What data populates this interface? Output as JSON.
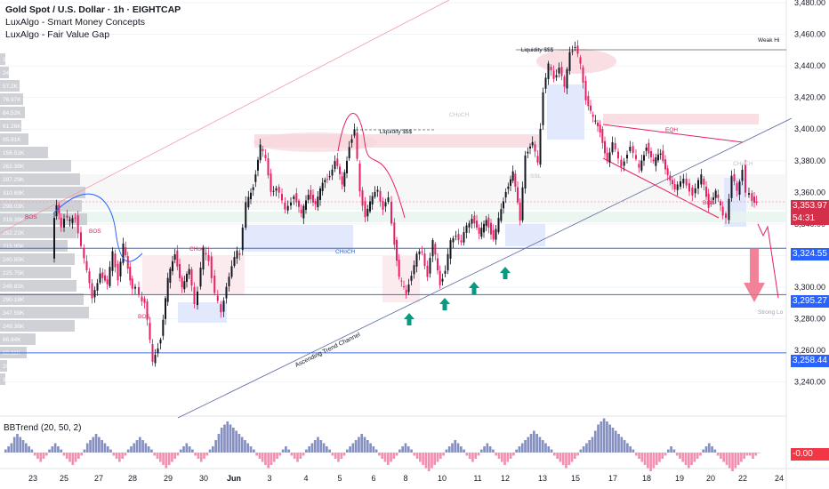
{
  "chart_data": {
    "type": "candlestick",
    "title": "Gold Spot / U.S. Dollar · 1h · EIGHTCAP",
    "indicators": [
      "LuxAlgo - Smart Money Concepts",
      "LuxAlgo - Fair Value Gap"
    ],
    "oscillator": {
      "name": "BBTrend (20, 50, 2)",
      "value": "-0.00"
    },
    "x_ticks": [
      "23",
      "25",
      "27",
      "28",
      "29",
      "30",
      "Jun",
      "3",
      "4",
      "5",
      "6",
      "8",
      "10",
      "11",
      "12",
      "13",
      "15",
      "17",
      "18",
      "19",
      "20",
      "22",
      "24"
    ],
    "y_ticks": [
      "3,480.00",
      "3,460.00",
      "3,440.00",
      "3,420.00",
      "3,400.00",
      "3,380.00",
      "3,360.00",
      "3,340.00",
      "3,320.00",
      "3,300.00",
      "3,280.00",
      "3,260.00",
      "3,240.00"
    ],
    "ylim": [
      3230,
      3490
    ],
    "last_price": "3,353.97",
    "countdown": "54:31",
    "levels": [
      {
        "price": 3324.55,
        "label": "3,324.55"
      },
      {
        "price": 3295.27,
        "label": "3,295.27"
      },
      {
        "price": 3258.44,
        "label": "3,258.44"
      }
    ],
    "path_points": [
      [
        3318,
        60
      ],
      [
        3345,
        62
      ],
      [
        3352,
        65
      ],
      [
        3338,
        70
      ],
      [
        3345,
        74
      ],
      [
        3341,
        80
      ],
      [
        3345,
        86
      ],
      [
        3317,
        96
      ],
      [
        3293,
        105
      ],
      [
        3310,
        114
      ],
      [
        3300,
        122
      ],
      [
        3322,
        128
      ],
      [
        3306,
        134
      ],
      [
        3326,
        140
      ],
      [
        3312,
        145
      ],
      [
        3300,
        150
      ],
      [
        3299,
        154
      ],
      [
        3295,
        158
      ],
      [
        3290,
        164
      ],
      [
        3253,
        173
      ],
      [
        3268,
        182
      ],
      [
        3304,
        190
      ],
      [
        3322,
        198
      ],
      [
        3300,
        206
      ],
      [
        3310,
        214
      ],
      [
        3290,
        220
      ],
      [
        3299,
        224
      ],
      [
        3323,
        230
      ],
      [
        3318,
        236
      ],
      [
        3296,
        243
      ],
      [
        3283,
        250
      ],
      [
        3302,
        256
      ],
      [
        3312,
        262
      ],
      [
        3323,
        268
      ],
      [
        3322,
        271
      ],
      [
        3352,
        278
      ],
      [
        3365,
        286
      ],
      [
        3389,
        294
      ],
      [
        3380,
        300
      ],
      [
        3362,
        306
      ],
      [
        3362,
        312
      ],
      [
        3350,
        322
      ],
      [
        3358,
        332
      ],
      [
        3345,
        340
      ],
      [
        3360,
        348
      ],
      [
        3352,
        356
      ],
      [
        3365,
        364
      ],
      [
        3372,
        372
      ],
      [
        3380,
        378
      ],
      [
        3365,
        386
      ],
      [
        3390,
        394
      ],
      [
        3399,
        400
      ],
      [
        3360,
        406
      ],
      [
        3346,
        412
      ],
      [
        3356,
        420
      ],
      [
        3362,
        426
      ],
      [
        3350,
        432
      ],
      [
        3355,
        438
      ],
      [
        3340,
        442
      ],
      [
        3305,
        450
      ],
      [
        3296,
        458
      ],
      [
        3309,
        464
      ],
      [
        3320,
        470
      ],
      [
        3322,
        476
      ],
      [
        3308,
        482
      ],
      [
        3328,
        488
      ],
      [
        3303,
        496
      ],
      [
        3311,
        502
      ],
      [
        3328,
        508
      ],
      [
        3334,
        514
      ],
      [
        3328,
        520
      ],
      [
        3338,
        526
      ],
      [
        3345,
        532
      ],
      [
        3332,
        540
      ],
      [
        3344,
        548
      ],
      [
        3330,
        556
      ],
      [
        3342,
        562
      ],
      [
        3362,
        570
      ],
      [
        3372,
        578
      ],
      [
        3342,
        586
      ],
      [
        3385,
        592
      ],
      [
        3390,
        600
      ],
      [
        3378,
        606
      ],
      [
        3425,
        612
      ],
      [
        3440,
        618
      ],
      [
        3432,
        624
      ],
      [
        3440,
        630
      ],
      [
        3425,
        636
      ],
      [
        3450,
        642
      ],
      [
        3452,
        648
      ],
      [
        3440,
        654
      ],
      [
        3420,
        660
      ],
      [
        3406,
        668
      ],
      [
        3399,
        676
      ],
      [
        3380,
        684
      ],
      [
        3390,
        690
      ],
      [
        3378,
        700
      ],
      [
        3388,
        710
      ],
      [
        3375,
        720
      ],
      [
        3390,
        728
      ],
      [
        3378,
        736
      ],
      [
        3385,
        744
      ],
      [
        3372,
        752
      ],
      [
        3360,
        760
      ],
      [
        3370,
        770
      ],
      [
        3358,
        780
      ],
      [
        3370,
        790
      ],
      [
        3352,
        798
      ],
      [
        3360,
        806
      ],
      [
        3345,
        814
      ],
      [
        3344,
        818
      ],
      [
        3370,
        824
      ],
      [
        3360,
        830
      ],
      [
        3376,
        836
      ],
      [
        3360,
        840
      ],
      [
        3358,
        844
      ],
      [
        3353,
        852
      ]
    ],
    "bbtrend": [
      1,
      2,
      3,
      5,
      6,
      5,
      4,
      3,
      2,
      1,
      -1,
      -2,
      -3,
      -2,
      -1,
      1,
      2,
      3,
      2,
      1,
      -1,
      -2,
      -3,
      -4,
      -3,
      -2,
      -1,
      1,
      3,
      4,
      5,
      6,
      5,
      4,
      3,
      2,
      1,
      -1,
      -2,
      -3,
      -2,
      -1,
      1,
      2,
      3,
      4,
      5,
      4,
      3,
      2,
      1,
      -1,
      -2,
      -3,
      -4,
      -5,
      -4,
      -3,
      -2,
      -1,
      1,
      2,
      3,
      2,
      1,
      -1,
      -2,
      -3,
      -2,
      -1,
      1,
      2,
      4,
      6,
      8,
      9,
      10,
      9,
      8,
      7,
      6,
      5,
      4,
      3,
      2,
      1,
      -1,
      -2,
      -3,
      -4,
      -5,
      -4,
      -3,
      -2,
      -1,
      1,
      2,
      1,
      -1,
      -2,
      -3,
      -2,
      -1,
      1,
      2,
      3,
      4,
      5,
      4,
      3,
      2,
      1,
      -1,
      -2,
      -3,
      -2,
      -1,
      1,
      2,
      3,
      4,
      5,
      6,
      5,
      4,
      3,
      2,
      1,
      -1,
      -2,
      -3,
      -4,
      -3,
      -2,
      -1,
      1,
      2,
      3,
      2,
      1,
      -1,
      -2,
      -3,
      -4,
      -5,
      -6,
      -5,
      -4,
      -3,
      -2,
      -1,
      1,
      2,
      3,
      4,
      3,
      2,
      1,
      -1,
      -2,
      -3,
      -2,
      -1,
      1,
      2,
      3,
      2,
      1,
      -1,
      -2,
      -3,
      -4,
      -3,
      -2,
      -1,
      1,
      2,
      3,
      4,
      5,
      6,
      7,
      6,
      5,
      4,
      3,
      2,
      1,
      -1,
      -2,
      -3,
      -4,
      -5,
      -4,
      -3,
      -2,
      -1,
      1,
      2,
      3,
      4,
      5,
      7,
      9,
      10,
      11,
      10,
      9,
      8,
      7,
      6,
      5,
      4,
      3,
      2,
      1,
      -1,
      -2,
      -3,
      -4,
      -5,
      -6,
      -5,
      -4,
      -3,
      -2,
      -1,
      1,
      2,
      1,
      -1,
      -2,
      -3,
      -4,
      -5,
      -4,
      -3,
      -2,
      -1,
      1,
      2,
      3,
      2,
      1,
      -1,
      -2,
      -3,
      -4,
      -5,
      -6,
      -5,
      -4,
      -3,
      -2,
      -1,
      -1,
      -2,
      -1,
      0
    ],
    "annotations": {
      "liquidity_top": "Liquidity $$$",
      "liquidity_mid": "Liquidity $$$",
      "choch_mid": "CHoCH",
      "choch_low": "CHoCH",
      "choch_left": "CHoCH",
      "choch_right": "CHoCH",
      "bos_labels": [
        "BOS",
        "BOS",
        "BOS",
        "BOS"
      ],
      "eqh": "EQH",
      "ssl": "SSL",
      "trend_channel": "Ascending Trend Channel",
      "weak_high": "Weak Hi",
      "strong_low": "Strong Lo"
    },
    "volume_profile_labels": [
      "1",
      "24",
      "57.2K",
      "76.97K",
      "84.52K",
      "61.26K",
      "95.91K",
      "156.51K",
      "262.38K",
      "287.29K",
      "310.69K",
      "298.03K",
      "318.38K",
      "252.22K",
      "215.95K",
      "240.85K",
      "225.75K",
      "248.81K",
      "290.18K",
      "347.59K",
      "249.36K",
      "86.84K",
      "60.11K",
      "20",
      "1"
    ]
  },
  "colors": {
    "up": "#131722",
    "down": "#e91e63",
    "level_line": "#3d6fd6",
    "price_tag": "#2962ff",
    "last_price_tag": "#d32f4a",
    "arrow_green": "#089981"
  }
}
